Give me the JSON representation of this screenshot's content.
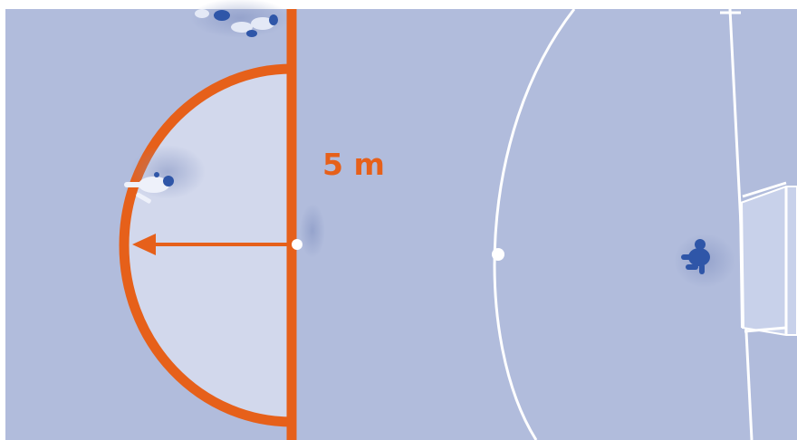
{
  "diagram": {
    "distance_label": "5 m",
    "colors": {
      "background": "#ffffff",
      "court": "#b1bcdc",
      "zone_fill": "#d2d8ec",
      "accent": "#e6601a",
      "court_lines": "#ffffff",
      "player": "#2f56a8"
    }
  }
}
